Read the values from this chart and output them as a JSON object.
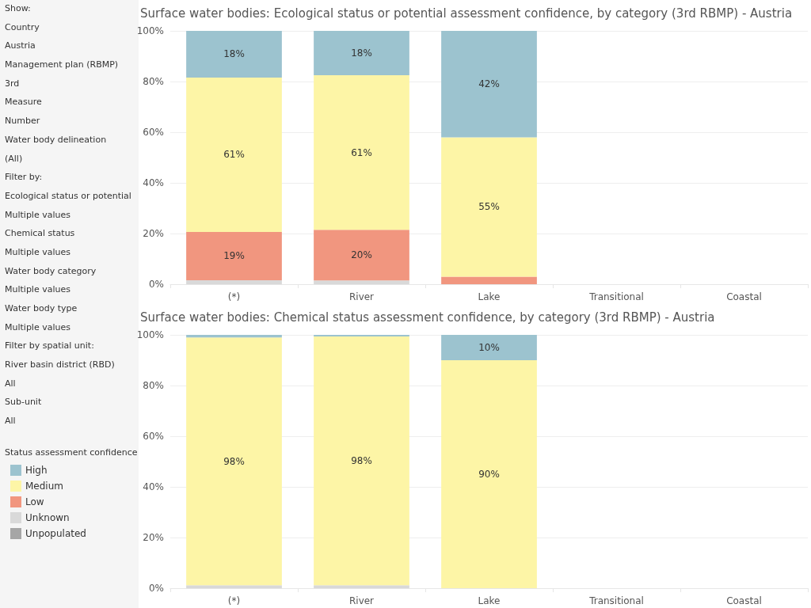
{
  "chart_data": [
    {
      "type": "bar",
      "title": "Surface water bodies: Ecological status or potential assessment confidence, by category (3rd RBMP) - Austria",
      "categories": [
        "(*)",
        "River",
        "Lake",
        "Transitional",
        "Coastal"
      ],
      "stacked": true,
      "ylim": [
        0,
        100
      ],
      "yticks": [
        {
          "value": 0,
          "label": "0%"
        },
        {
          "value": 20,
          "label": "20%"
        },
        {
          "value": 40,
          "label": "40%"
        },
        {
          "value": 60,
          "label": "60%"
        },
        {
          "value": 80,
          "label": "80%"
        },
        {
          "value": 100,
          "label": "100%"
        }
      ],
      "grid": "y",
      "legend": false,
      "series": [
        {
          "color": "#d9d9d9",
          "values": [
            1.6,
            1.5,
            null,
            null,
            null
          ]
        },
        {
          "color": "#f1967f",
          "values": [
            19,
            20,
            3,
            null,
            null
          ],
          "value_labels": [
            "19%",
            "20%",
            null,
            null,
            null
          ]
        },
        {
          "color": "#fdf5a6",
          "values": [
            61,
            61,
            55,
            null,
            null
          ],
          "value_labels": [
            "61%",
            "61%",
            "55%",
            null,
            null
          ]
        },
        {
          "color": "#9cc3cf",
          "values": [
            18.4,
            17.5,
            42,
            null,
            null
          ],
          "value_labels": [
            "18%",
            "18%",
            "42%",
            null,
            null
          ]
        }
      ]
    },
    {
      "type": "bar",
      "title": "Surface water bodies: Chemical status assessment confidence, by category (3rd RBMP) - Austria",
      "categories": [
        "(*)",
        "River",
        "Lake",
        "Transitional",
        "Coastal"
      ],
      "stacked": true,
      "ylim": [
        0,
        100
      ],
      "yticks": [
        {
          "value": 0,
          "label": "0%"
        },
        {
          "value": 20,
          "label": "20%"
        },
        {
          "value": 40,
          "label": "40%"
        },
        {
          "value": 60,
          "label": "60%"
        },
        {
          "value": 80,
          "label": "80%"
        },
        {
          "value": 100,
          "label": "100%"
        }
      ],
      "grid": "y",
      "legend": "left",
      "legend_title": "Status assessment confidence",
      "series": [
        {
          "name": "Unpopulated",
          "color": "#a6a6a6",
          "values": [
            null,
            null,
            null,
            null,
            null
          ]
        },
        {
          "name": "Unknown",
          "color": "#d9d9d9",
          "values": [
            1.2,
            1.2,
            null,
            null,
            null
          ]
        },
        {
          "name": "Low",
          "color": "#f1967f",
          "values": [
            null,
            null,
            null,
            null,
            null
          ]
        },
        {
          "name": "Medium",
          "color": "#fdf5a6",
          "values": [
            97.8,
            98.2,
            90,
            null,
            null
          ],
          "value_labels": [
            "98%",
            "98%",
            "90%",
            null,
            null
          ]
        },
        {
          "name": "High",
          "color": "#9cc3cf",
          "values": [
            1,
            0.6,
            10,
            null,
            null
          ],
          "value_labels": [
            null,
            null,
            "10%",
            null,
            null
          ]
        }
      ]
    },
    {
      "type": "other",
      "annotations": [
        "Show:",
        "Country",
        "Austria",
        "Management plan (RBMP)",
        "3rd",
        "Measure",
        "Number",
        "Water body delineation",
        "(All)",
        "Filter by:",
        "Ecological status or potential",
        "Multiple values",
        "Chemical status",
        "Multiple values",
        "Water body category",
        "Multiple values",
        "Water body type",
        "Multiple values",
        "Filter by spatial unit:",
        "River basin district (RBD)",
        "All",
        "Sub-unit",
        "All"
      ]
    }
  ]
}
